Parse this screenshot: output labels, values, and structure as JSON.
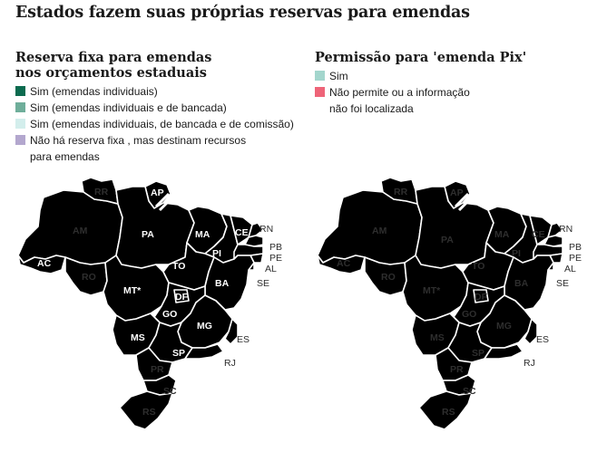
{
  "title": "Estados fazem suas próprias reservas para emendas",
  "left_panel": {
    "title_line1": "Reserva fixa para emendas",
    "title_line2": "nos orçamentos estaduais",
    "legend": [
      {
        "label": "Sim (emendas individuais)",
        "color": "#0b6b4f"
      },
      {
        "label": "Sim (emendas individuais e de bancada)",
        "color": "#6fae9a"
      },
      {
        "label": "Sim (emendas individuais, de bancada e de comissão)",
        "color": "#d3eeec"
      },
      {
        "label": "Não há reserva fixa , mas destinam recursos",
        "label2": "para emendas",
        "color": "#b3a7ce"
      }
    ]
  },
  "right_panel": {
    "title": "Permissão para 'emenda Pix'",
    "legend": [
      {
        "label": "Sim",
        "color": "#a3d6cd"
      },
      {
        "label": "Não permite ou a informação",
        "label2": "não foi localizada",
        "color": "#ee6478"
      }
    ]
  },
  "states": [
    "RR",
    "AP",
    "AM",
    "PA",
    "MA",
    "CE",
    "RN",
    "PB",
    "PE",
    "AL",
    "SE",
    "PI",
    "TO",
    "BA",
    "AC",
    "RO",
    "MT*",
    "DF",
    "GO",
    "MG",
    "ES",
    "MS",
    "SP",
    "RJ",
    "PR",
    "SC",
    "RS"
  ],
  "colors": {
    "dark_green": "#0b6b4f",
    "mid_green": "#6fae9a",
    "light_teal": "#d3eeec",
    "purple": "#b3a7ce",
    "pix_yes": "#a3d6cd",
    "pix_no": "#ee6478"
  }
}
